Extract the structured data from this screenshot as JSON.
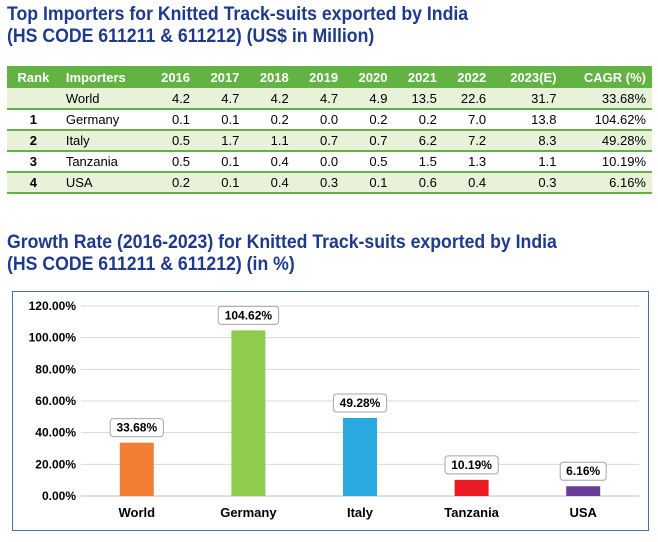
{
  "table_title_line1": "Top Importers for Knitted Track-suits exported by India",
  "table_title_line2": "(HS CODE 611211 & 611212) (US$ in Million)",
  "table": {
    "headers": [
      "Rank",
      "Importers",
      "2016",
      "2017",
      "2018",
      "2019",
      "2020",
      "2021",
      "2022",
      "2023(E)",
      "CAGR (%)"
    ],
    "rows": [
      [
        "",
        "World",
        "4.2",
        "4.7",
        "4.2",
        "4.7",
        "4.9",
        "13.5",
        "22.6",
        "31.7",
        "33.68%"
      ],
      [
        "1",
        "Germany",
        "0.1",
        "0.1",
        "0.2",
        "0.0",
        "0.2",
        "0.2",
        "7.0",
        "13.8",
        "104.62%"
      ],
      [
        "2",
        "Italy",
        "0.5",
        "1.7",
        "1.1",
        "0.7",
        "0.7",
        "6.2",
        "7.2",
        "8.3",
        "49.28%"
      ],
      [
        "3",
        "Tanzania",
        "0.5",
        "0.1",
        "0.4",
        "0.0",
        "0.5",
        "1.5",
        "1.3",
        "1.1",
        "10.19%"
      ],
      [
        "4",
        "USA",
        "0.2",
        "0.1",
        "0.4",
        "0.3",
        "0.1",
        "0.6",
        "0.4",
        "0.3",
        "6.16%"
      ]
    ]
  },
  "chart_title_line1": "Growth Rate (2016-2023) for Knitted Track-suits exported by India",
  "chart_title_line2": "(HS CODE 611211 & 611212) (in %)",
  "colors": {
    "title": "#1e3a8c",
    "table_header": "#62b244",
    "table_alt_row": "#e8f2d8",
    "chart_border": "#4a6fa5"
  },
  "chart_data": {
    "type": "bar",
    "categories": [
      "World",
      "Germany",
      "Italy",
      "Tanzania",
      "USA"
    ],
    "values": [
      33.68,
      104.62,
      49.28,
      10.19,
      6.16
    ],
    "data_labels": [
      "33.68%",
      "104.62%",
      "49.28%",
      "10.19%",
      "6.16%"
    ],
    "bar_colors": [
      "#f07f33",
      "#8fcc4d",
      "#2aa8e0",
      "#ec1c24",
      "#6a3d9a"
    ],
    "ylim": [
      0,
      120
    ],
    "yticks": [
      0,
      20,
      40,
      60,
      80,
      100,
      120
    ],
    "ytick_labels": [
      "0.00%",
      "20.00%",
      "40.00%",
      "60.00%",
      "80.00%",
      "100.00%",
      "120.00%"
    ],
    "grid": true,
    "legend": "none"
  }
}
